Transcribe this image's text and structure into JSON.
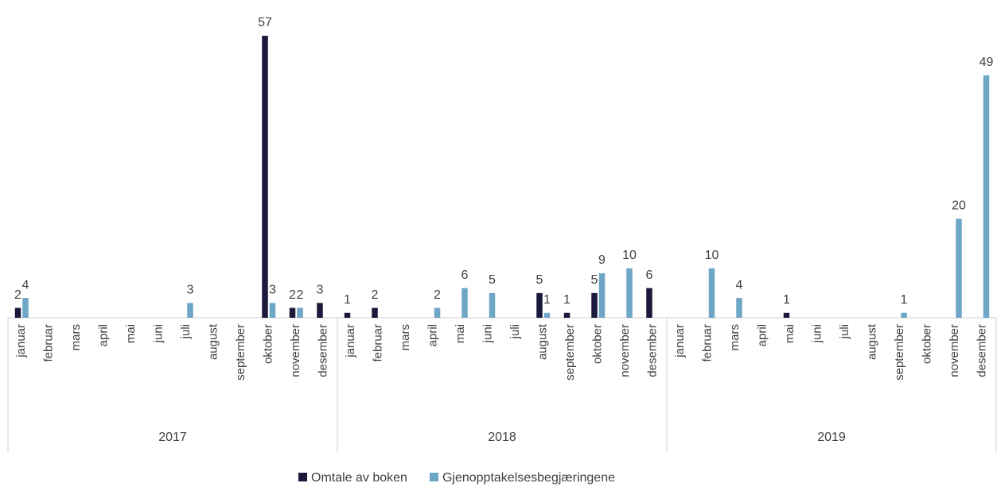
{
  "chart_data": {
    "type": "bar",
    "categories": [
      "januar",
      "februar",
      "mars",
      "april",
      "mai",
      "juni",
      "juli",
      "august",
      "september",
      "oktober",
      "november",
      "desember",
      "januar",
      "februar",
      "mars",
      "april",
      "mai",
      "juni",
      "juli",
      "august",
      "september",
      "oktober",
      "november",
      "desember",
      "januar",
      "februar",
      "mars",
      "april",
      "mai",
      "juni",
      "juli",
      "august",
      "september",
      "oktober",
      "november",
      "desember"
    ],
    "groups": [
      "2017",
      "2018",
      "2019"
    ],
    "series": [
      {
        "name": "Omtale av boken",
        "color": "#1b1a3c",
        "values": [
          2,
          null,
          null,
          null,
          null,
          null,
          null,
          null,
          null,
          57,
          2,
          3,
          1,
          2,
          null,
          null,
          null,
          null,
          null,
          5,
          1,
          5,
          null,
          6,
          null,
          null,
          null,
          null,
          1,
          null,
          null,
          null,
          null,
          null,
          null,
          null
        ]
      },
      {
        "name": "Gjenopptakelsesbegjæringene",
        "color": "#6ea6c6",
        "values": [
          4,
          null,
          null,
          null,
          null,
          null,
          3,
          null,
          null,
          3,
          2,
          null,
          null,
          null,
          null,
          2,
          6,
          5,
          null,
          1,
          null,
          9,
          10,
          null,
          null,
          10,
          4,
          null,
          null,
          null,
          null,
          null,
          1,
          null,
          20,
          49
        ]
      }
    ],
    "legend": "bottom"
  }
}
